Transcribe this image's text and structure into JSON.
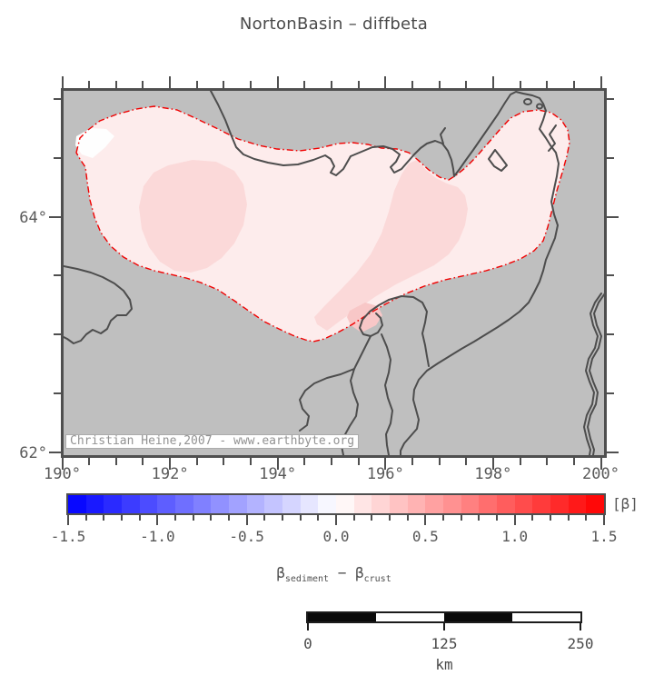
{
  "title": "NortonBasin – diffbeta",
  "map": {
    "watermark": "Christian Heine,2007 - www.earthbyte.org",
    "x_axis": {
      "deg_min": 190,
      "deg_max": 200,
      "minor_step_deg": 0.5,
      "major_tick_labels": [
        {
          "deg": 190,
          "label": "190°"
        },
        {
          "deg": 192,
          "label": "192°"
        },
        {
          "deg": 194,
          "label": "194°"
        },
        {
          "deg": 196,
          "label": "196°"
        },
        {
          "deg": 198,
          "label": "198°"
        },
        {
          "deg": 200,
          "label": "200°"
        }
      ]
    },
    "y_axis": {
      "deg_min": 62,
      "deg_max": 65.07,
      "minor_step_deg": 0.5,
      "major_tick_labels": [
        {
          "deg": 62,
          "label": "62°"
        },
        {
          "deg": 64,
          "label": "64°"
        }
      ]
    },
    "land_color": "#bfbfbf",
    "coastline_color": "#4d4d4d",
    "basin_outline_color": "#f10000",
    "basin_fill_colors": {
      "near_zero": "#ffffff",
      "light": "#fdecec",
      "medium": "#fbd9d9",
      "strong": "#f8c7c7"
    }
  },
  "colorbar": {
    "unit_label": "[β]",
    "min": -1.5,
    "max": 1.5,
    "cell_step": 0.1,
    "major_tick_step": 0.5,
    "tick_labels": [
      "-1.5",
      "-1.0",
      "-0.5",
      "0.0",
      "0.5",
      "1.0",
      "1.5"
    ],
    "color_negative_end": "#0000ff",
    "color_zero": "#ffffff",
    "color_positive_end": "#ff0000"
  },
  "caption": {
    "beta1": "β",
    "sub1": "sediment",
    "minus": "−",
    "beta2": "β",
    "sub2": "crust"
  },
  "scalebar": {
    "tick_labels": [
      "0",
      "125",
      "250"
    ],
    "unit": "km",
    "segments": 4,
    "length_km": 250
  },
  "chart_data": {
    "type": "heatmap",
    "title": "NortonBasin – diffbeta",
    "quantity": "β_sediment − β_crust",
    "x_range_deg": [
      190,
      200
    ],
    "x_tick_step_deg": 2,
    "y_range_deg": [
      62,
      65.07
    ],
    "y_labeled_ticks_deg": [
      62,
      64
    ],
    "colorbar": {
      "label": "[β]",
      "range": [
        -1.5,
        1.5
      ],
      "cell_width": 0.1,
      "cmap": "polar blue-white-red"
    },
    "regions": [
      {
        "name": "basin bulk interior",
        "diffbeta_approx": 0.1
      },
      {
        "name": "west-central patch and southeast flank band",
        "diffbeta_approx": 0.2
      },
      {
        "name": "small patch at south coast near delta",
        "diffbeta_approx": 0.3
      },
      {
        "name": "sliver at far west tip of basin",
        "diffbeta_approx": 0.0
      },
      {
        "name": "outside basin outline",
        "diffbeta_approx": null
      }
    ],
    "scalebar_km": [
      0,
      125,
      250
    ]
  }
}
